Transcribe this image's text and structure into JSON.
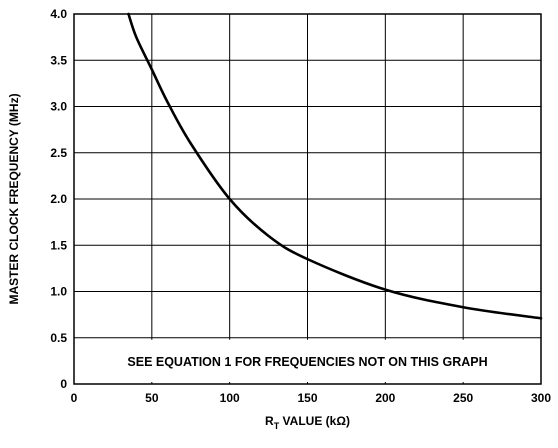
{
  "chart_data": {
    "type": "line",
    "xlabel_main": "R",
    "xlabel_sub": "T",
    "xlabel_rest": " VALUE (kΩ)",
    "ylabel": "MASTER CLOCK FREQUENCY (MHz)",
    "annotation": "SEE EQUATION 1 FOR FREQUENCIES NOT ON THIS GRAPH",
    "xlim": [
      0,
      300
    ],
    "ylim": [
      0,
      4.0
    ],
    "x_ticks": [
      0,
      50,
      100,
      150,
      200,
      250,
      300
    ],
    "x_tick_labels": [
      "0",
      "50",
      "100",
      "150",
      "200",
      "250",
      "300"
    ],
    "y_ticks": [
      0,
      0.5,
      1.0,
      1.5,
      2.0,
      2.5,
      3.0,
      3.5,
      4.0
    ],
    "y_tick_labels": [
      "0",
      "0.5",
      "1.0",
      "1.5",
      "2.0",
      "2.5",
      "3.0",
      "3.5",
      "4.0"
    ],
    "grid": true,
    "series": [
      {
        "color": "#000000",
        "x": [
          35,
          40,
          50,
          60,
          75,
          100,
          125,
          150,
          200,
          250,
          300
        ],
        "y": [
          4.0,
          3.75,
          3.4,
          3.05,
          2.6,
          2.0,
          1.6,
          1.35,
          1.02,
          0.83,
          0.71
        ]
      }
    ]
  }
}
